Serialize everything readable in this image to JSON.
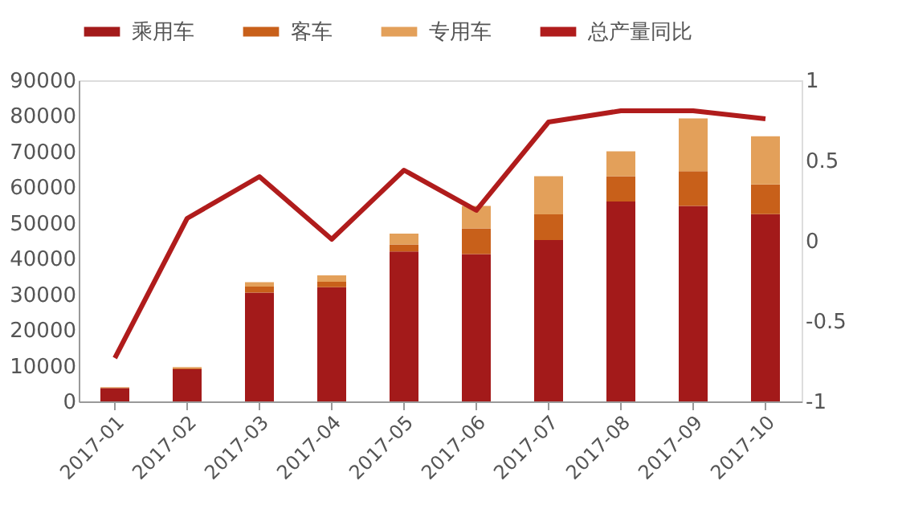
{
  "chart_data": {
    "type": "bar",
    "stacked": true,
    "legend": "top",
    "categories": [
      "2017-01",
      "2017-02",
      "2017-03",
      "2017-04",
      "2017-05",
      "2017-06",
      "2017-07",
      "2017-08",
      "2017-09",
      "2017-10"
    ],
    "series": [
      {
        "name": "乘用车",
        "color": "#a31a1a",
        "values": [
          3700,
          9000,
          30500,
          32000,
          42000,
          41300,
          45200,
          56000,
          54800,
          52500
        ]
      },
      {
        "name": "客车",
        "color": "#c8601a",
        "values": [
          200,
          300,
          1700,
          1500,
          2000,
          7200,
          7200,
          7100,
          9700,
          8300
        ]
      },
      {
        "name": "专用车",
        "color": "#e3a05a",
        "values": [
          100,
          300,
          1200,
          1800,
          3000,
          6300,
          10700,
          7000,
          14800,
          13500
        ]
      },
      {
        "name": "总产量同比",
        "type": "line",
        "axis": "y2",
        "color": "#b01c1c",
        "values": [
          -0.73,
          0.14,
          0.4,
          0.01,
          0.44,
          0.19,
          0.74,
          0.81,
          0.81,
          0.76
        ]
      }
    ],
    "ylim": [
      0,
      90000
    ],
    "yticks": [
      0,
      10000,
      20000,
      30000,
      40000,
      50000,
      60000,
      70000,
      80000,
      90000
    ],
    "y2lim": [
      -1,
      1
    ],
    "y2ticks": [
      -1,
      -0.5,
      0,
      0.5,
      1
    ],
    "grid": false
  }
}
